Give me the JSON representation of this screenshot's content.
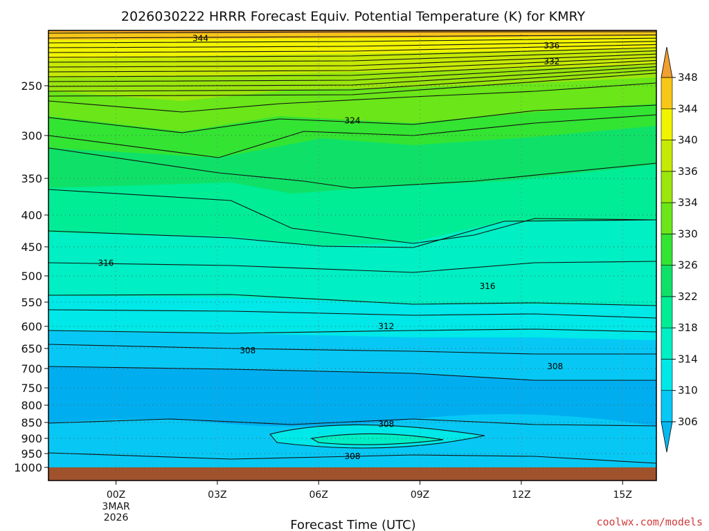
{
  "chart_data": {
    "type": "contour",
    "title": "2026030222 HRRR Forecast Equiv. Potential Temperature (K) for KMRY",
    "xlabel": "Forecast Time (UTC)",
    "credit": "coolwx.com/models",
    "x_ticks": [
      {
        "hour": 0,
        "label": "00Z",
        "sub1": "3MAR",
        "sub2": "2026"
      },
      {
        "hour": 3,
        "label": "03Z"
      },
      {
        "hour": 6,
        "label": "06Z"
      },
      {
        "hour": 9,
        "label": "09Z"
      },
      {
        "hour": 12,
        "label": "12Z"
      },
      {
        "hour": 15,
        "label": "15Z"
      }
    ],
    "x_range_hours": [
      -2,
      16
    ],
    "y_ticks": [
      250,
      300,
      350,
      400,
      450,
      500,
      550,
      600,
      650,
      700,
      750,
      800,
      850,
      900,
      950,
      1000
    ],
    "y_range_hpa": [
      200,
      1025
    ],
    "colorbar_levels": [
      306,
      310,
      314,
      318,
      322,
      326,
      330,
      334,
      336,
      340,
      344,
      348
    ],
    "colorbar_colors": [
      "#07c8f5",
      "#00e8e8",
      "#00efc4",
      "#00ed96",
      "#0fe168",
      "#33e433",
      "#6ae619",
      "#9ae60d",
      "#c6ea05",
      "#f1f400",
      "#f8c618",
      "#f0a030"
    ],
    "contour_labels": [
      {
        "text": "344",
        "hour": 2.5,
        "p": 205
      },
      {
        "text": "336",
        "hour": 12.9,
        "p": 212
      },
      {
        "text": "332",
        "hour": 12.9,
        "p": 227
      },
      {
        "text": "324",
        "hour": 7.0,
        "p": 285
      },
      {
        "text": "316",
        "hour": -0.3,
        "p": 478
      },
      {
        "text": "316",
        "hour": 11.0,
        "p": 520
      },
      {
        "text": "312",
        "hour": 8.0,
        "p": 600
      },
      {
        "text": "308",
        "hour": 3.9,
        "p": 655
      },
      {
        "text": "308",
        "hour": 13.0,
        "p": 695
      },
      {
        "text": "308",
        "hour": 8.0,
        "p": 855
      },
      {
        "text": "308",
        "hour": 7.0,
        "p": 960
      }
    ],
    "terrain_color": "#a0522d"
  }
}
